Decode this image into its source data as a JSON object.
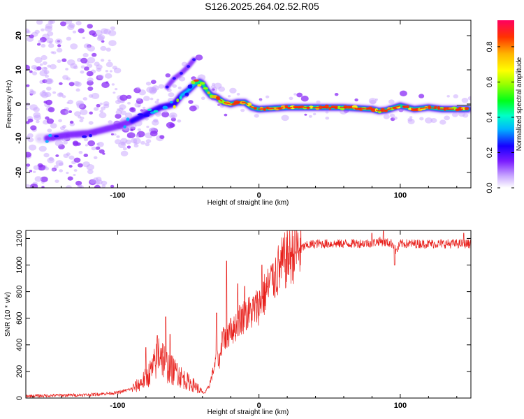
{
  "title": "S126.2025.264.02.52.R05",
  "chart_data": [
    {
      "type": "heatmap",
      "xlabel": "Height of straight line (km)",
      "ylabel": "Frequency (Hz)",
      "xlim": [
        -165,
        150
      ],
      "ylim": [
        -24.5,
        24.5
      ],
      "xticks": [
        -100,
        0,
        100
      ],
      "yticks": [
        -20,
        -10,
        0,
        10,
        20
      ],
      "colorbar": {
        "label": "Normalized spectral amplitude",
        "range": [
          0,
          0.95
        ],
        "ticks": [
          0.0,
          0.2,
          0.4,
          0.6,
          0.8
        ]
      },
      "ridge": {
        "x": [
          -150,
          -135,
          -120,
          -110,
          -100,
          -90,
          -80,
          -70,
          -60,
          -55,
          -50,
          -45,
          -42,
          -40,
          -37,
          -34,
          -30,
          -25,
          -20,
          -15,
          -10,
          -5,
          0,
          20,
          40,
          60,
          80,
          85,
          90,
          100,
          110,
          120,
          130,
          148
        ],
        "y": [
          -10,
          -9,
          -8.5,
          -7.5,
          -6.5,
          -5,
          -3,
          -1,
          0,
          2.5,
          4,
          6,
          6.5,
          6,
          4,
          2.5,
          2,
          0.5,
          0,
          0.5,
          0.5,
          -1,
          -1.5,
          -1,
          -1,
          -1,
          -1.5,
          -2,
          -1.8,
          -0.5,
          -1.5,
          -1,
          -1.5,
          -1.5
        ]
      },
      "secondary_ridge": {
        "x": [
          -65,
          -60,
          -55,
          -50,
          -46
        ],
        "y": [
          5,
          7.5,
          9,
          11,
          13
        ]
      }
    },
    {
      "type": "line",
      "xlabel": "Height of straight line (km)",
      "ylabel": "SNR (10 * v/v)",
      "xlim": [
        -165,
        150
      ],
      "ylim": [
        0,
        1260
      ],
      "xticks": [
        -100,
        0,
        100
      ],
      "yticks": [
        0,
        200,
        400,
        600,
        800,
        1000,
        1200
      ],
      "color": "#e8201c",
      "envelope": {
        "x": [
          -165,
          -120,
          -100,
          -90,
          -85,
          -80,
          -75,
          -72,
          -70,
          -68,
          -65,
          -60,
          -55,
          -50,
          -45,
          -40,
          -38,
          -35,
          -33,
          -30,
          -28,
          -25,
          -23,
          -20,
          -18,
          -15,
          -10,
          -5,
          0,
          5,
          10,
          15,
          20,
          25,
          30,
          35,
          40,
          60,
          80,
          85,
          90,
          95,
          97,
          100,
          110,
          120,
          150
        ],
        "y": [
          15,
          25,
          40,
          70,
          100,
          150,
          220,
          300,
          380,
          300,
          240,
          200,
          160,
          120,
          90,
          40,
          40,
          100,
          180,
          300,
          280,
          500,
          400,
          550,
          500,
          580,
          620,
          650,
          700,
          800,
          900,
          980,
          1050,
          1100,
          1130,
          1150,
          1160,
          1160,
          1165,
          1180,
          1170,
          1160,
          1100,
          1160,
          1160,
          1160,
          1160
        ]
      },
      "spikes": [
        {
          "x": -80,
          "y": 380
        },
        {
          "x": -72,
          "y": 470
        },
        {
          "x": -66,
          "y": 610
        },
        {
          "x": -63,
          "y": 480
        },
        {
          "x": -58,
          "y": 260
        },
        {
          "x": -30,
          "y": 640
        },
        {
          "x": -26,
          "y": 500
        },
        {
          "x": -23,
          "y": 1030
        },
        {
          "x": -20,
          "y": 600
        },
        {
          "x": -15,
          "y": 860
        },
        {
          "x": -10,
          "y": 840
        },
        {
          "x": 2,
          "y": 1000
        },
        {
          "x": 10,
          "y": 1010
        },
        {
          "x": 80,
          "y": 1240
        },
        {
          "x": 88,
          "y": 1260
        },
        {
          "x": 96,
          "y": 1000
        },
        {
          "x": 145,
          "y": 1240
        }
      ]
    }
  ]
}
